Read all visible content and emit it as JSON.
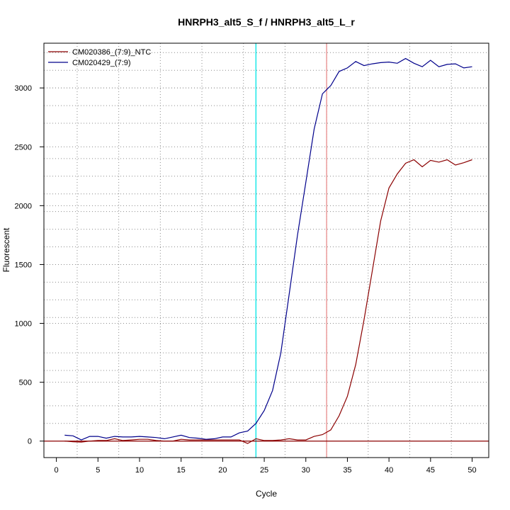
{
  "chart_data": {
    "type": "line",
    "title": "HNRPH3_alt5_S_f / HNRPH3_alt5_L_r",
    "xlabel": "Cycle",
    "ylabel": "Fluorescent",
    "xlim": [
      -1.5,
      52
    ],
    "ylim": [
      -140,
      3380
    ],
    "x_ticks": [
      0,
      5,
      10,
      15,
      20,
      25,
      30,
      35,
      40,
      45,
      50
    ],
    "y_ticks": [
      0,
      500,
      1000,
      1500,
      2000,
      2500,
      3000
    ],
    "grid_x": [
      2.5,
      7.5,
      12.5,
      17.5,
      22.5,
      27.5,
      32.5,
      37.5,
      42.5,
      47.5
    ],
    "grid_y": [
      150,
      300,
      600,
      750,
      1050,
      1200,
      1350,
      1650,
      1800,
      1950,
      2100,
      2250,
      2400,
      2700,
      2850,
      3000,
      3150,
      3300
    ],
    "threshold_y": 0,
    "threshold_color": "#8b0000",
    "vertical_markers": [
      {
        "x": 24,
        "color": "#00e5e5"
      },
      {
        "x": 32.5,
        "color": "#e88b8b"
      }
    ],
    "legend_position": "top-left",
    "series": [
      {
        "name": "CM020386_(7:9)_NTC",
        "color": "#8b0000",
        "x": [
          1,
          2,
          3,
          4,
          5,
          6,
          7,
          8,
          9,
          10,
          11,
          12,
          13,
          14,
          15,
          16,
          17,
          18,
          19,
          20,
          21,
          22,
          23,
          24,
          25,
          26,
          27,
          28,
          29,
          30,
          31,
          32,
          33,
          34,
          35,
          36,
          37,
          38,
          39,
          40,
          41,
          42,
          43,
          44,
          45,
          46,
          47,
          48,
          49,
          50
        ],
        "values": [
          0,
          -5,
          -8,
          0,
          5,
          5,
          20,
          5,
          10,
          15,
          15,
          5,
          0,
          0,
          15,
          10,
          10,
          10,
          10,
          10,
          10,
          10,
          -20,
          20,
          5,
          5,
          10,
          20,
          10,
          10,
          40,
          55,
          95,
          215,
          380,
          650,
          1030,
          1450,
          1870,
          2150,
          2270,
          2360,
          2390,
          2330,
          2385,
          2370,
          2390,
          2345,
          2365,
          2390
        ]
      },
      {
        "name": "CM020429_(7:9)",
        "color": "#00008b",
        "x": [
          1,
          2,
          3,
          4,
          5,
          6,
          7,
          8,
          9,
          10,
          11,
          12,
          13,
          14,
          15,
          16,
          17,
          18,
          19,
          20,
          21,
          22,
          23,
          24,
          25,
          26,
          27,
          28,
          29,
          30,
          31,
          32,
          33,
          34,
          35,
          36,
          37,
          38,
          39,
          40,
          41,
          42,
          43,
          44,
          45,
          46,
          47,
          48,
          49,
          50
        ],
        "values": [
          50,
          45,
          10,
          40,
          40,
          25,
          40,
          35,
          35,
          40,
          35,
          30,
          20,
          35,
          50,
          30,
          25,
          15,
          20,
          35,
          35,
          70,
          85,
          150,
          260,
          430,
          750,
          1250,
          1750,
          2200,
          2650,
          2950,
          3020,
          3140,
          3170,
          3225,
          3190,
          3205,
          3215,
          3220,
          3210,
          3250,
          3210,
          3180,
          3235,
          3180,
          3200,
          3205,
          3170,
          3180
        ]
      }
    ]
  }
}
